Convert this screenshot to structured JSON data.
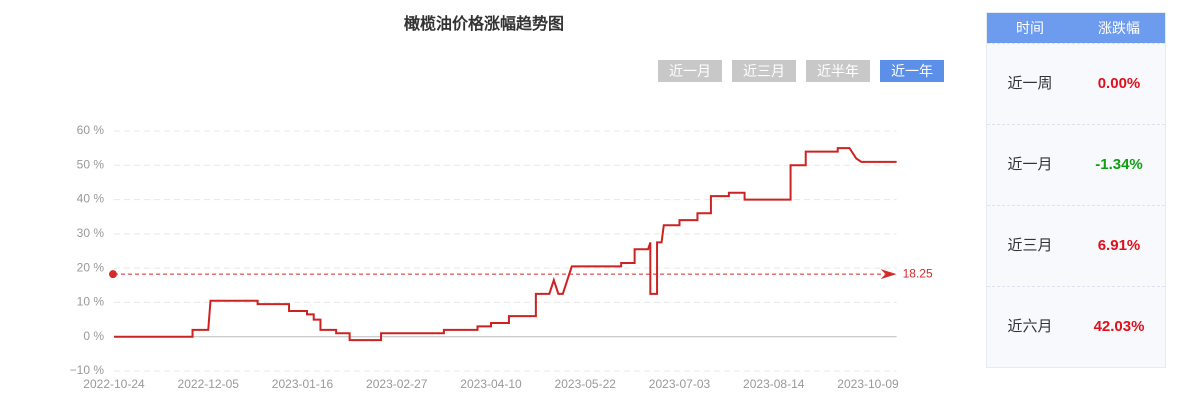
{
  "chart_data": {
    "type": "line",
    "title": "橄榄油价格涨幅趋势图",
    "x": [
      "2022-10-24",
      "2022-11-28",
      "2022-11-28",
      "2022-12-05",
      "2022-12-06",
      "2022-12-27",
      "2022-12-27",
      "2023-01-10",
      "2023-01-10",
      "2023-01-18",
      "2023-01-18",
      "2023-01-21",
      "2023-01-21",
      "2023-01-24",
      "2023-01-24",
      "2023-01-31",
      "2023-01-31",
      "2023-02-06",
      "2023-02-06",
      "2023-02-20",
      "2023-02-20",
      "2023-03-20",
      "2023-03-20",
      "2023-04-04",
      "2023-04-04",
      "2023-04-10",
      "2023-04-10",
      "2023-04-18",
      "2023-04-18",
      "2023-04-30",
      "2023-04-30",
      "2023-05-06",
      "2023-05-08",
      "2023-05-10",
      "2023-05-12",
      "2023-05-16",
      "2023-06-07",
      "2023-06-07",
      "2023-06-13",
      "2023-06-13",
      "2023-06-19",
      "2023-06-20",
      "2023-06-20",
      "2023-06-23",
      "2023-06-23",
      "2023-06-25",
      "2023-06-26",
      "2023-07-03",
      "2023-07-03",
      "2023-07-11",
      "2023-07-11",
      "2023-07-17",
      "2023-07-17",
      "2023-07-25",
      "2023-07-25",
      "2023-08-01",
      "2023-08-01",
      "2023-08-24",
      "2023-08-24",
      "2023-09-02",
      "2023-09-02",
      "2023-09-21",
      "2023-09-21",
      "2023-09-28",
      "2023-10-02",
      "2023-10-05",
      "2023-10-26"
    ],
    "series": [
      {
        "color": "#cc2222",
        "values": [
          0,
          0,
          2,
          2,
          10.5,
          10.5,
          9.5,
          9.5,
          7.5,
          7.5,
          6.5,
          6.5,
          5,
          5,
          2,
          2,
          1,
          1,
          -1,
          -1,
          1,
          1,
          2,
          2,
          3,
          3,
          4,
          4,
          6,
          6,
          12.5,
          12.5,
          16.5,
          12.5,
          12.5,
          20.5,
          20.5,
          21.5,
          21.5,
          25.5,
          25.5,
          27.5,
          12.5,
          12.5,
          27.5,
          27.5,
          32.5,
          32.5,
          34,
          34,
          36,
          36,
          41,
          41,
          42,
          42,
          40,
          40,
          50,
          50,
          54,
          54,
          55,
          55,
          52,
          51,
          51
        ]
      }
    ],
    "xlim": [
      "2022-10-24",
      "2023-10-26"
    ],
    "xticks": [
      "2022-10-24",
      "2022-12-05",
      "2023-01-16",
      "2023-02-27",
      "2023-04-10",
      "2023-05-22",
      "2023-07-03",
      "2023-08-14",
      "2023-10-09"
    ],
    "ylim": [
      -10,
      60
    ],
    "yticks": [
      {
        "value": -10,
        "label": "−10 %"
      },
      {
        "value": 0,
        "label": "0 %"
      },
      {
        "value": 10,
        "label": "10 %"
      },
      {
        "value": 20,
        "label": "20 %"
      },
      {
        "value": 30,
        "label": "30 %"
      },
      {
        "value": 40,
        "label": "40 %"
      },
      {
        "value": 50,
        "label": "50 %"
      },
      {
        "value": 60,
        "label": "60 %"
      }
    ],
    "grid": true,
    "reference_line": {
      "value": 18.25,
      "color": "#d42a2a"
    }
  },
  "buttons": [
    {
      "label": "近一月",
      "active": false
    },
    {
      "label": "近三月",
      "active": false
    },
    {
      "label": "近半年",
      "active": false
    },
    {
      "label": "近一年",
      "active": true
    }
  ],
  "table": {
    "header": [
      "时间",
      "涨跌幅"
    ],
    "rows": [
      {
        "period": "近一周",
        "change": "0.00%",
        "color": "#e0101a"
      },
      {
        "period": "近一月",
        "change": "-1.34%",
        "color": "#11a011"
      },
      {
        "period": "近三月",
        "change": "6.91%",
        "color": "#e0101a"
      },
      {
        "period": "近六月",
        "change": "42.03%",
        "color": "#e0101a"
      }
    ]
  }
}
